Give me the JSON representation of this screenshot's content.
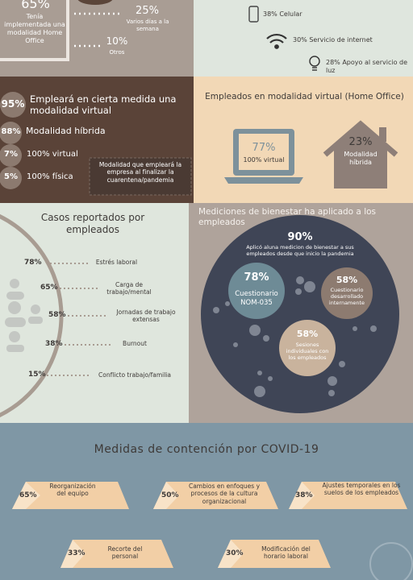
{
  "home_office": {
    "percent": "65%",
    "label": "Tenía implementada una modalidad Home Office",
    "items": [
      {
        "percent": "25%",
        "label": "Varios días a la semana"
      },
      {
        "percent": "10%",
        "label": "Otros"
      }
    ]
  },
  "support": [
    {
      "text": "38% Celular"
    },
    {
      "text": "30% Servicio de internet"
    },
    {
      "text": "28% Apoyo al servicio de luz"
    }
  ],
  "future_modality": {
    "items": [
      {
        "percent": "95%",
        "label": "Empleará en cierta medida una modalidad virtual"
      },
      {
        "percent": "88%",
        "label": "Modalidad híbrida"
      },
      {
        "percent": "7%",
        "label": "100% virtual"
      },
      {
        "percent": "5%",
        "label": "100% física"
      }
    ],
    "note": "Modalidad  que empleará la empresa al finalizar la cuarentena/pandemia"
  },
  "virtual_employees": {
    "title": "Empleados en modalidad virtual (Home Office)",
    "items": [
      {
        "percent": "77%",
        "label": "100% virtual"
      },
      {
        "percent": "23%",
        "label": "Modalidad híbrida"
      }
    ]
  },
  "cases": {
    "title": "Casos reportados por empleados",
    "rows": [
      {
        "percent": "78%",
        "label": "Estrés laboral"
      },
      {
        "percent": "65%",
        "label": "Carga de trabajo/mental"
      },
      {
        "percent": "58%",
        "label": "Jornadas de trabajo extensas"
      },
      {
        "percent": "38%",
        "label": "Burnout"
      },
      {
        "percent": "15%",
        "label": "Conflicto trabajo/familia"
      }
    ]
  },
  "wellbeing": {
    "title": "Mediciones de bienestar ha aplicado a los empleados",
    "main": {
      "percent": "90%",
      "label": "Aplicó aluna medicion de bienestar a sus empleados desde que inicio la pandemia"
    },
    "items": [
      {
        "percent": "78%",
        "label": "Cuestionario NOM-035"
      },
      {
        "percent": "58%",
        "label": "Cuestionario desarrollado internamente"
      },
      {
        "percent": "58%",
        "label": "Sesiones individuales con los empleados"
      }
    ]
  },
  "measures": {
    "title": "Medidas de contención por COVID-19",
    "items": [
      {
        "percent": "65%",
        "label": "Reorganización del equipo"
      },
      {
        "percent": "50%",
        "label": "Cambios en enfoques y procesos de la cultura organizacional"
      },
      {
        "percent": "38%",
        "label": "Ajustes temporales en los suelos de los empleados"
      },
      {
        "percent": "33%",
        "label": "Recorte del personal"
      },
      {
        "percent": "30%",
        "label": "Modificación del horario laboral"
      }
    ]
  }
}
